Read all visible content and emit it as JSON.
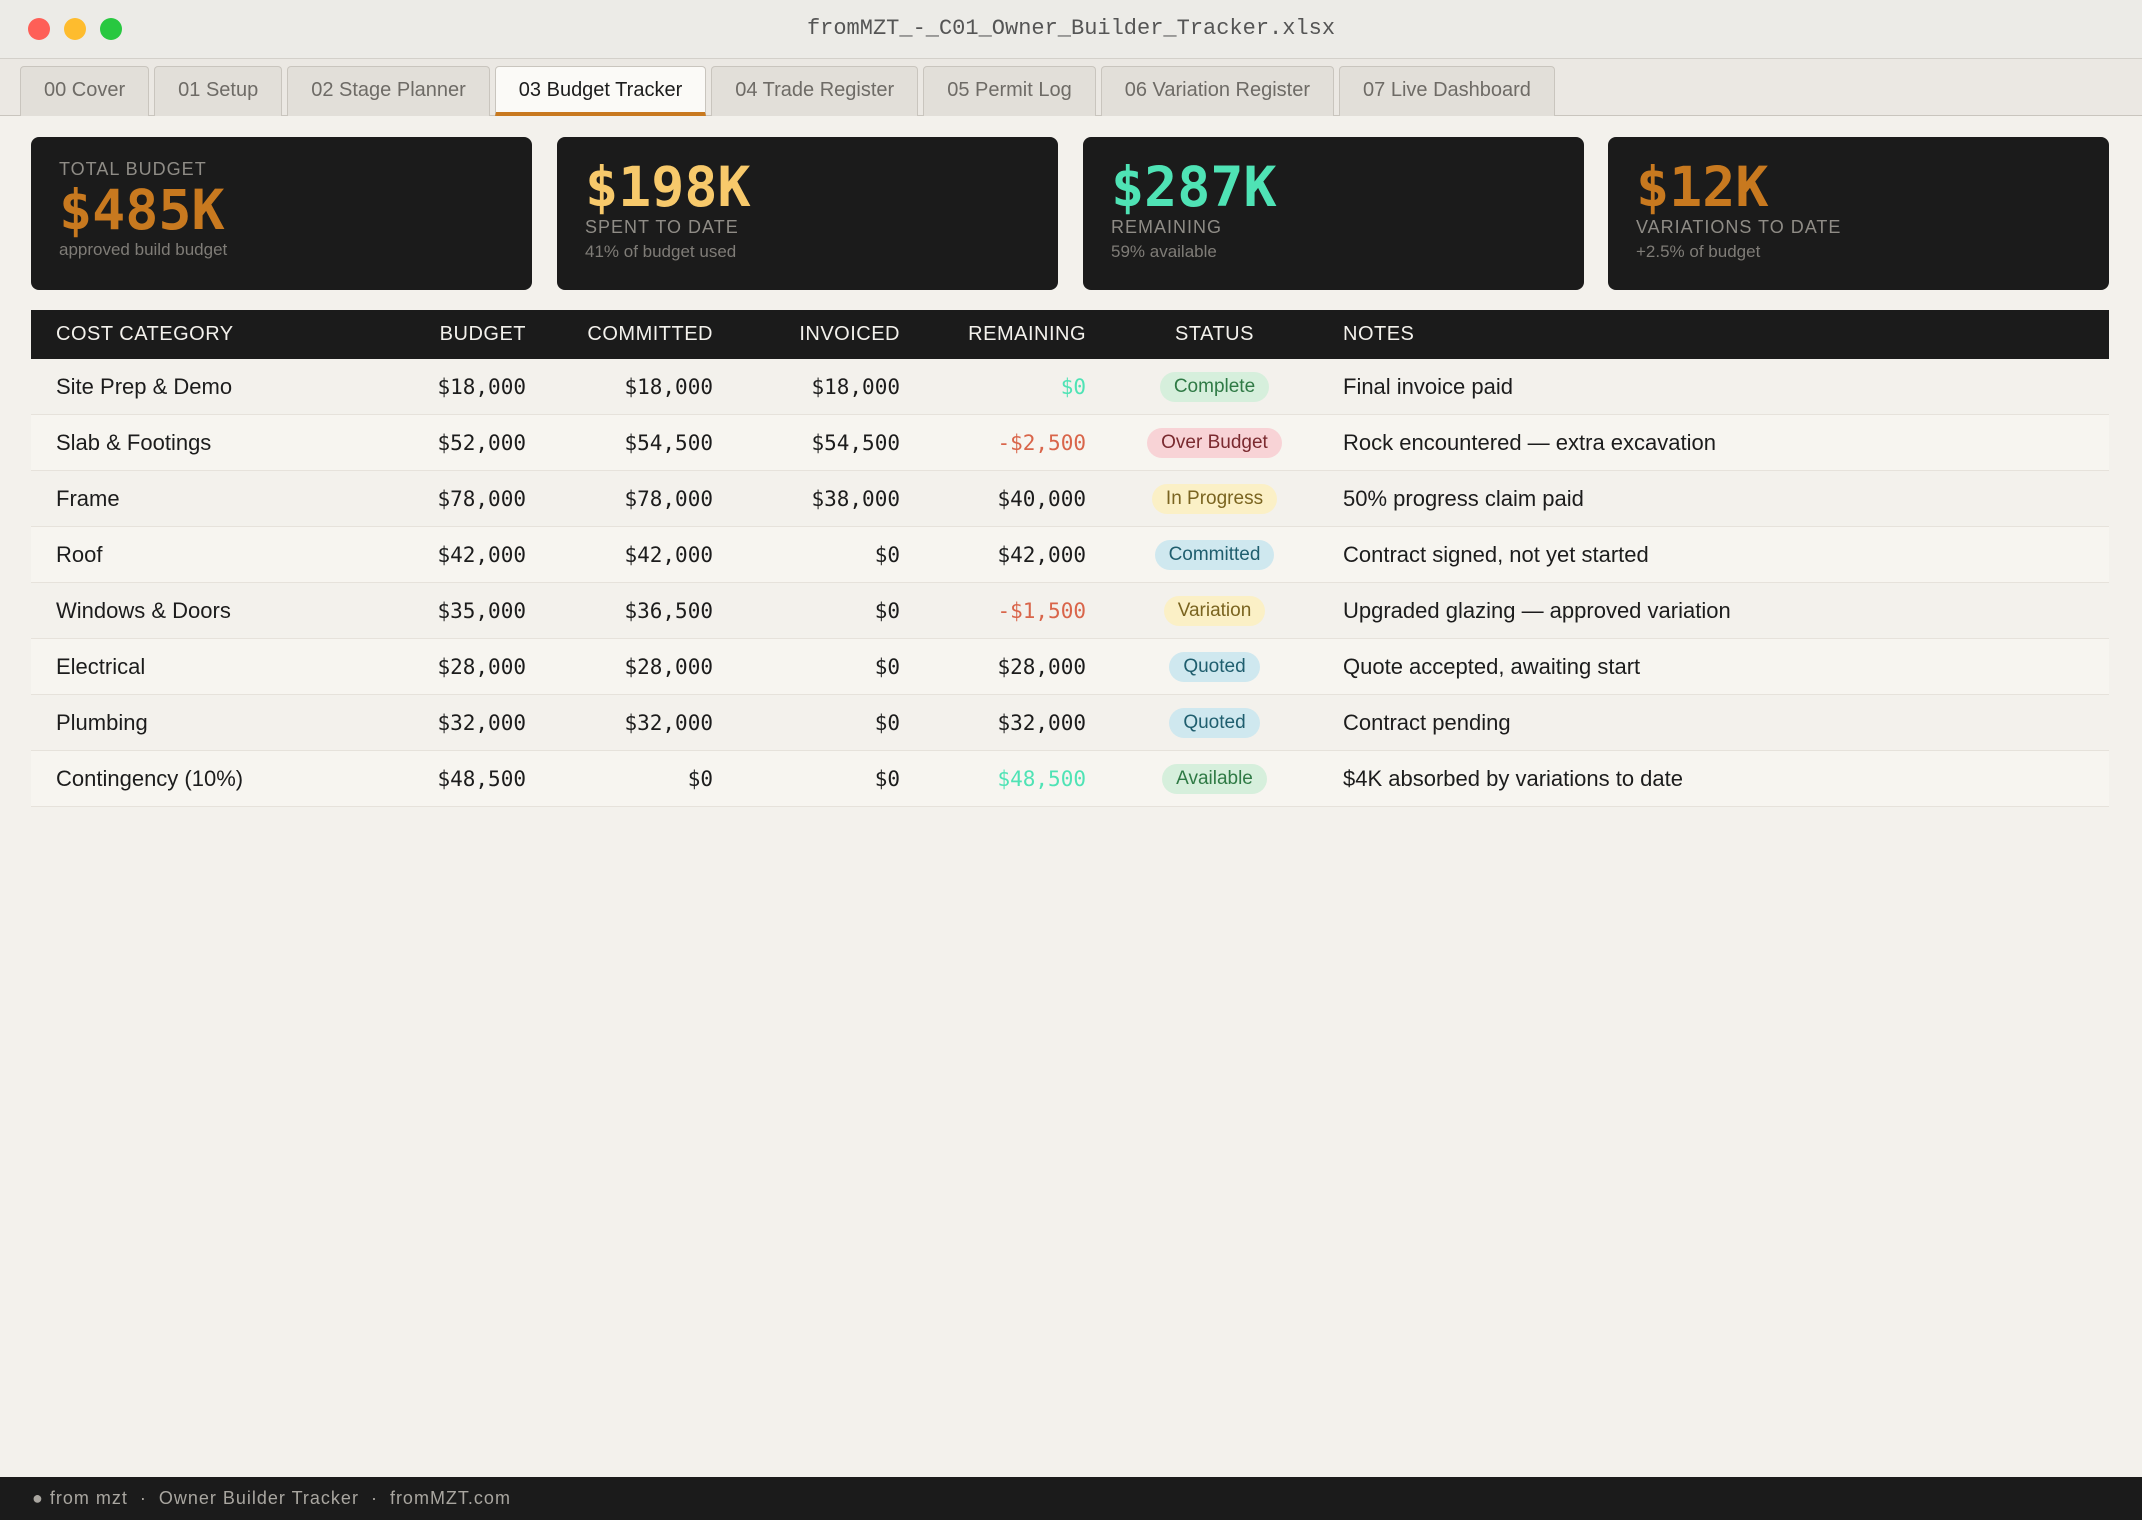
{
  "window": {
    "title": "fromMZT_-_C01_Owner_Builder_Tracker.xlsx"
  },
  "tabs": [
    "00 Cover",
    "01 Setup",
    "02 Stage Planner",
    "03 Budget Tracker",
    "04 Trade Register",
    "05 Permit Log",
    "06 Variation Register",
    "07 Live Dashboard"
  ],
  "active_tab": 3,
  "cards": [
    {
      "label": "TOTAL BUDGET",
      "value": "$485K",
      "sub": "approved build budget",
      "color": "#c8791f"
    },
    {
      "label": "SPENT TO DATE",
      "value": "$198K",
      "sub": "41% of budget used",
      "color": "#f7c96b"
    },
    {
      "label": "REMAINING",
      "value": "$287K",
      "sub": "59% available",
      "color": "#4fe3b5"
    },
    {
      "label": "VARIATIONS TO DATE",
      "value": "$12K",
      "sub": "+2.5% of budget",
      "color": "#c8791f"
    }
  ],
  "table": {
    "headers": [
      "COST CATEGORY",
      "BUDGET",
      "COMMITTED",
      "INVOICED",
      "REMAINING",
      "STATUS",
      "NOTES"
    ],
    "rows": [
      {
        "cells": [
          "Site Prep & Demo",
          "$18,000",
          "$18,000",
          "$18,000",
          "$0",
          "Complete",
          "Final invoice paid"
        ],
        "remaining_color": "#4fe3b5",
        "status_bg": "#d6efdc",
        "status_fg": "#2f7a45"
      },
      {
        "cells": [
          "Slab & Footings",
          "$52,000",
          "$54,500",
          "$54,500",
          "-$2,500",
          "Over Budget",
          "Rock encountered — extra excavation"
        ],
        "remaining_color": "#d9654a",
        "status_bg": "#f8d3d6",
        "status_fg": "#7a2a2f"
      },
      {
        "cells": [
          "Frame",
          "$78,000",
          "$78,000",
          "$38,000",
          "$40,000",
          "In Progress",
          "50% progress claim paid"
        ],
        "remaining_color": "#1c1c1c",
        "status_bg": "#fbf0c6",
        "status_fg": "#7a6420"
      },
      {
        "cells": [
          "Roof",
          "$42,000",
          "$42,000",
          "$0",
          "$42,000",
          "Committed",
          "Contract signed, not yet started"
        ],
        "remaining_color": "#1c1c1c",
        "status_bg": "#cfe8ef",
        "status_fg": "#1f5e6e"
      },
      {
        "cells": [
          "Windows & Doors",
          "$35,000",
          "$36,500",
          "$0",
          "-$1,500",
          "Variation",
          "Upgraded glazing — approved variation"
        ],
        "remaining_color": "#d9654a",
        "status_bg": "#fbf0c6",
        "status_fg": "#7a6420"
      },
      {
        "cells": [
          "Electrical",
          "$28,000",
          "$28,000",
          "$0",
          "$28,000",
          "Quoted",
          "Quote accepted, awaiting start"
        ],
        "remaining_color": "#1c1c1c",
        "status_bg": "#cfe8ef",
        "status_fg": "#1f5e6e"
      },
      {
        "cells": [
          "Plumbing",
          "$32,000",
          "$32,000",
          "$0",
          "$32,000",
          "Quoted",
          "Contract pending"
        ],
        "remaining_color": "#1c1c1c",
        "status_bg": "#cfe8ef",
        "status_fg": "#1f5e6e"
      },
      {
        "cells": [
          "Contingency (10%)",
          "$48,500",
          "$0",
          "$0",
          "$48,500",
          "Available",
          "$4K absorbed by variations to date"
        ],
        "remaining_color": "#4fe3b5",
        "status_bg": "#d6efdc",
        "status_fg": "#2f7a45"
      }
    ]
  },
  "footer": {
    "items": [
      "● from mzt",
      "Owner Builder Tracker",
      "fromMZT.com"
    ],
    "separator": "·"
  }
}
